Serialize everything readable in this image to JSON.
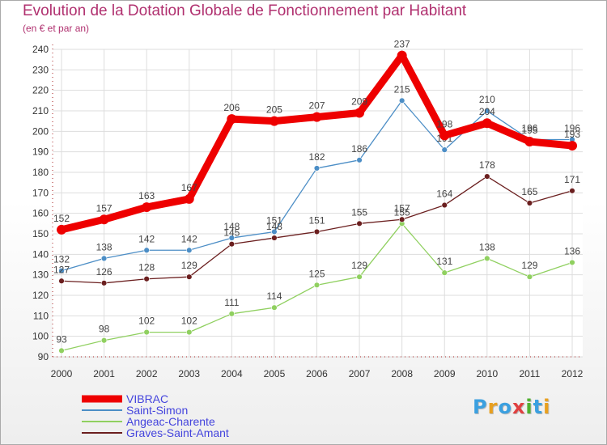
{
  "header": {
    "title": "Evolution de la Dotation Globale de Fonctionnement par Habitant",
    "subtitle": "(en € et par an)"
  },
  "brand": {
    "name": "Proxiti",
    "colors": [
      "#3ba0e0",
      "#e8a020",
      "#3ba0e0",
      "#e04040",
      "#50b030",
      "#3ba0e0",
      "#e8a020"
    ]
  },
  "chart_data": {
    "type": "line",
    "title": "Evolution de la Dotation Globale de Fonctionnement par Habitant",
    "subtitle": "(en € et par an)",
    "xlabel": "",
    "ylabel": "",
    "categories": [
      "2000",
      "2001",
      "2002",
      "2003",
      "2004",
      "2005",
      "2006",
      "2007",
      "2008",
      "2009",
      "2010",
      "2011",
      "2012"
    ],
    "y_ticks": [
      90,
      100,
      110,
      120,
      130,
      140,
      150,
      160,
      170,
      180,
      190,
      200,
      210,
      220,
      230,
      240
    ],
    "ylim": [
      90,
      240
    ],
    "grid": true,
    "legend_position": "bottom-left",
    "series": [
      {
        "name": "VIBRAC",
        "color": "#ee0000",
        "emphasis": true,
        "values": [
          152,
          157,
          163,
          167,
          206,
          205,
          207,
          209,
          237,
          198,
          204,
          195,
          193
        ]
      },
      {
        "name": "Saint-Simon",
        "color": "#4c8ec6",
        "emphasis": false,
        "values": [
          132,
          138,
          142,
          142,
          148,
          151,
          182,
          186,
          215,
          191,
          210,
          196,
          196
        ]
      },
      {
        "name": "Angeac-Charente",
        "color": "#90d060",
        "emphasis": false,
        "values": [
          93,
          98,
          102,
          102,
          111,
          114,
          125,
          129,
          155,
          131,
          138,
          129,
          136
        ]
      },
      {
        "name": "Graves-Saint-Amant",
        "color": "#6b1f1f",
        "emphasis": false,
        "values": [
          127,
          126,
          128,
          129,
          145,
          148,
          151,
          155,
          157,
          164,
          178,
          165,
          171
        ]
      }
    ]
  }
}
